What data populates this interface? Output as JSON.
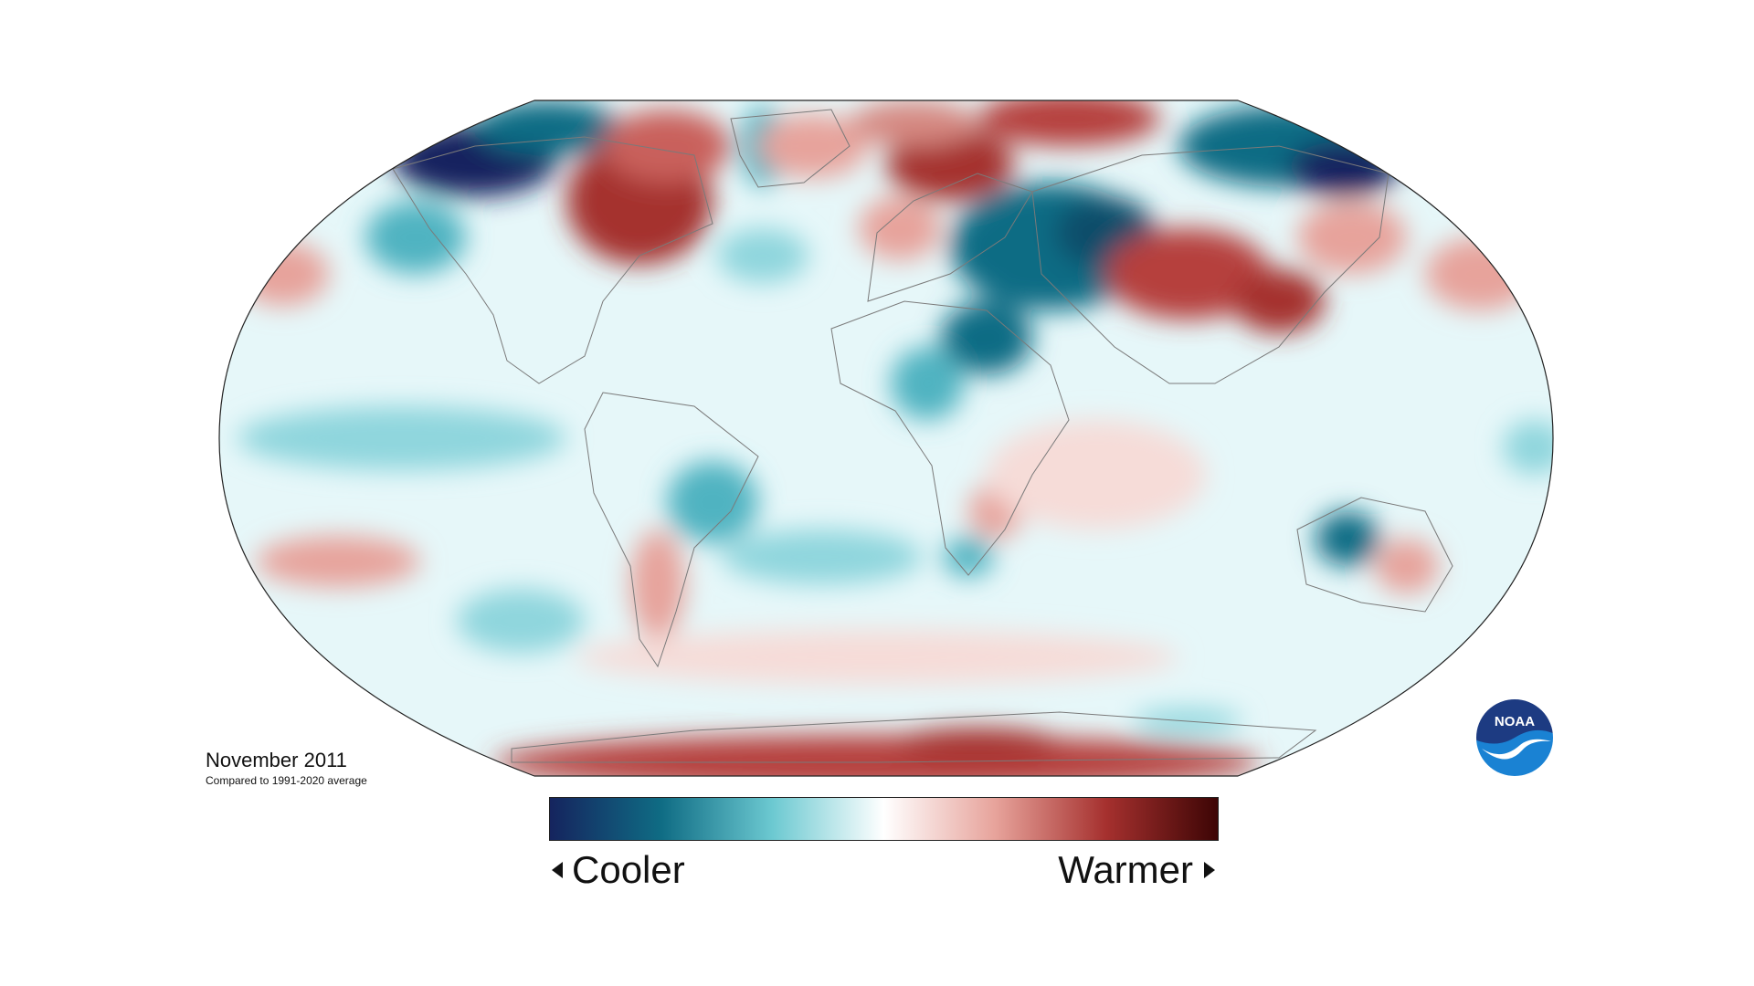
{
  "map": {
    "title": "November 2011",
    "subtitle": "Compared to 1991-2020 average",
    "projection": "Robinson",
    "legend": {
      "left_label": "Cooler",
      "right_label": "Warmer",
      "colors": [
        "#15245e",
        "#0f6c84",
        "#6cc9d1",
        "#ffffff",
        "#e7a39b",
        "#a5302e",
        "#3d0505"
      ]
    },
    "ocean_color": "#e6f7f9",
    "logo": {
      "text": "NOAA",
      "colors": {
        "top": "#1d3b82",
        "bottom": "#1a82d3"
      }
    }
  }
}
